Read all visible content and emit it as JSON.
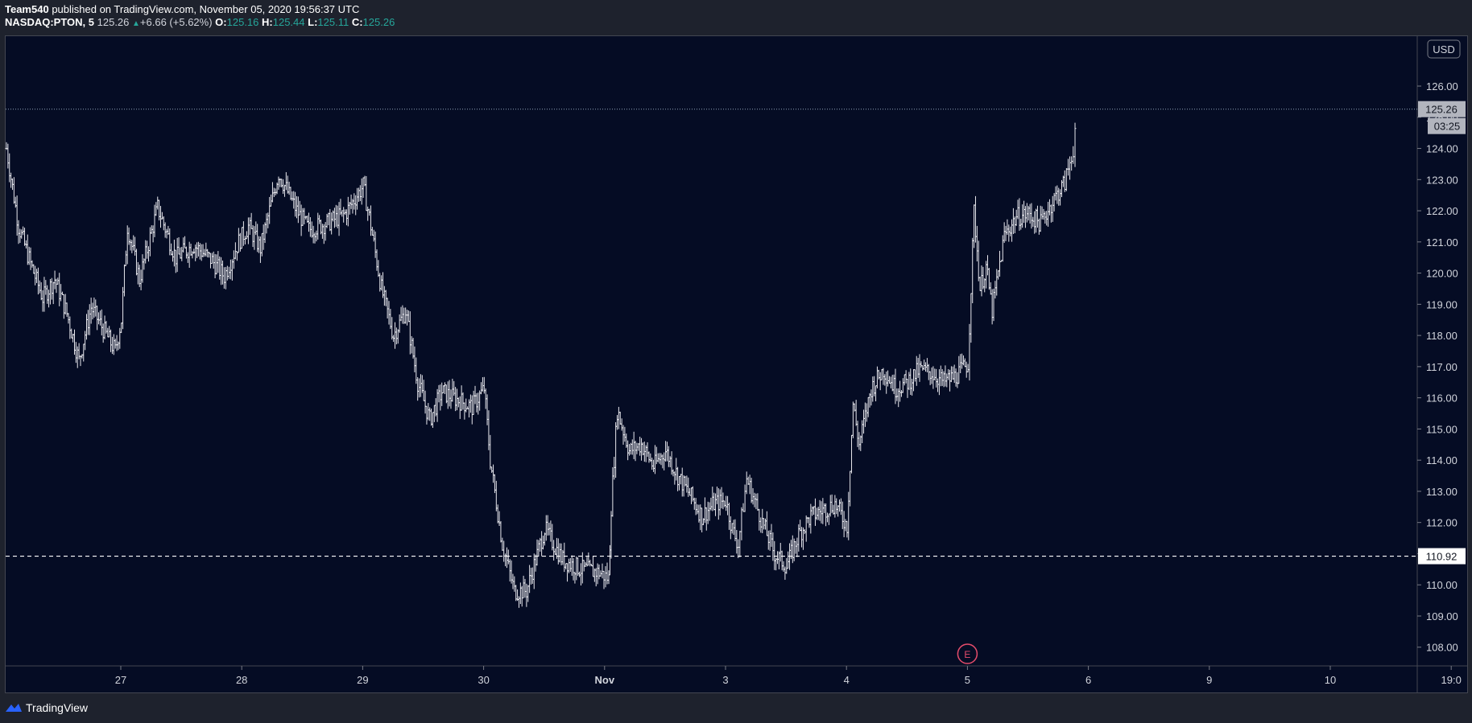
{
  "header": {
    "author": "Team540",
    "published_text": "published on TradingView.com, November 05, 2020 19:56:37 UTC",
    "symbol": "NASDAQ:PTON, 5",
    "last": "125.26",
    "change": "+6.66 (+5.62%)",
    "o_label": "O:",
    "o_value": "125.16",
    "h_label": "H:",
    "h_value": "125.44",
    "l_label": "L:",
    "l_value": "125.11",
    "c_label": "C:",
    "c_value": "125.26"
  },
  "currency_button": "USD",
  "footer": {
    "brand": "TradingView"
  },
  "colors": {
    "background": "#050c24",
    "bars": "#e8e8ee",
    "accent": "#26a69a",
    "earnings": "#e54c6b"
  },
  "chart_data": {
    "type": "ohlc",
    "symbol": "NASDAQ:PTON",
    "interval": "5",
    "ylim": [
      107.4,
      127.6
    ],
    "y_ticks": [
      "108.00",
      "109.00",
      "110.00",
      "111.00",
      "112.00",
      "113.00",
      "114.00",
      "115.00",
      "116.00",
      "117.00",
      "118.00",
      "119.00",
      "120.00",
      "121.00",
      "122.00",
      "123.00",
      "124.00",
      "125.00",
      "126.00"
    ],
    "x_ticks": [
      "27",
      "28",
      "29",
      "30",
      "Nov",
      "3",
      "4",
      "5",
      "6",
      "9",
      "10",
      "19:0"
    ],
    "last_price": {
      "value": 125.26,
      "label": "125.26",
      "countdown": "03:25"
    },
    "horizontal_line": {
      "value": 110.92,
      "label": "110.92"
    },
    "events": [
      {
        "x": "5",
        "label": "E"
      }
    ],
    "series": [
      {
        "x": 0.0,
        "y": 124.0
      },
      {
        "x": 0.1,
        "y": 121.5
      },
      {
        "x": 0.2,
        "y": 120.3
      },
      {
        "x": 0.3,
        "y": 119.2
      },
      {
        "x": 0.4,
        "y": 119.8
      },
      {
        "x": 0.5,
        "y": 118.7
      },
      {
        "x": 0.6,
        "y": 117.2
      },
      {
        "x": 0.7,
        "y": 118.9
      },
      {
        "x": 0.8,
        "y": 118.2
      },
      {
        "x": 0.9,
        "y": 117.5
      },
      {
        "x": 0.95,
        "y": 118.5
      },
      {
        "x": 1.0,
        "y": 121.5
      },
      {
        "x": 1.1,
        "y": 119.8
      },
      {
        "x": 1.25,
        "y": 122.1
      },
      {
        "x": 1.4,
        "y": 120.5
      },
      {
        "x": 1.55,
        "y": 120.9
      },
      {
        "x": 1.7,
        "y": 120.4
      },
      {
        "x": 1.8,
        "y": 119.9
      },
      {
        "x": 1.92,
        "y": 121.0
      },
      {
        "x": 2.0,
        "y": 121.5
      },
      {
        "x": 2.1,
        "y": 120.8
      },
      {
        "x": 2.25,
        "y": 123.2
      },
      {
        "x": 2.4,
        "y": 122.0
      },
      {
        "x": 2.5,
        "y": 121.4
      },
      {
        "x": 2.65,
        "y": 121.6
      },
      {
        "x": 2.8,
        "y": 121.9
      },
      {
        "x": 2.95,
        "y": 122.8
      },
      {
        "x": 3.0,
        "y": 121.8
      },
      {
        "x": 3.1,
        "y": 119.5
      },
      {
        "x": 3.2,
        "y": 118.0
      },
      {
        "x": 3.3,
        "y": 118.8
      },
      {
        "x": 3.4,
        "y": 116.5
      },
      {
        "x": 3.5,
        "y": 115.3
      },
      {
        "x": 3.6,
        "y": 116.2
      },
      {
        "x": 3.7,
        "y": 116.0
      },
      {
        "x": 3.85,
        "y": 115.7
      },
      {
        "x": 3.95,
        "y": 116.3
      },
      {
        "x": 4.0,
        "y": 114.0
      },
      {
        "x": 4.1,
        "y": 111.3
      },
      {
        "x": 4.2,
        "y": 109.8
      },
      {
        "x": 4.3,
        "y": 109.8
      },
      {
        "x": 4.45,
        "y": 111.8
      },
      {
        "x": 4.6,
        "y": 110.8
      },
      {
        "x": 4.75,
        "y": 110.5
      },
      {
        "x": 4.9,
        "y": 110.4
      },
      {
        "x": 4.98,
        "y": 110.2
      },
      {
        "x": 5.0,
        "y": 112.5
      },
      {
        "x": 5.05,
        "y": 115.6
      },
      {
        "x": 5.15,
        "y": 114.3
      },
      {
        "x": 5.25,
        "y": 114.5
      },
      {
        "x": 5.35,
        "y": 113.8
      },
      {
        "x": 5.45,
        "y": 114.3
      },
      {
        "x": 5.55,
        "y": 113.5
      },
      {
        "x": 5.65,
        "y": 112.9
      },
      {
        "x": 5.75,
        "y": 112.2
      },
      {
        "x": 5.85,
        "y": 112.6
      },
      {
        "x": 5.95,
        "y": 112.7
      },
      {
        "x": 6.0,
        "y": 111.8
      },
      {
        "x": 6.05,
        "y": 111.3
      },
      {
        "x": 6.12,
        "y": 113.4
      },
      {
        "x": 6.25,
        "y": 112.0
      },
      {
        "x": 6.35,
        "y": 111.0
      },
      {
        "x": 6.45,
        "y": 110.6
      },
      {
        "x": 6.55,
        "y": 111.6
      },
      {
        "x": 6.65,
        "y": 112.2
      },
      {
        "x": 6.75,
        "y": 112.4
      },
      {
        "x": 6.85,
        "y": 112.6
      },
      {
        "x": 6.95,
        "y": 111.9
      },
      {
        "x": 7.0,
        "y": 115.8
      },
      {
        "x": 7.05,
        "y": 114.5
      },
      {
        "x": 7.15,
        "y": 116.3
      },
      {
        "x": 7.25,
        "y": 116.9
      },
      {
        "x": 7.35,
        "y": 116.3
      },
      {
        "x": 7.45,
        "y": 116.5
      },
      {
        "x": 7.55,
        "y": 116.9
      },
      {
        "x": 7.65,
        "y": 116.8
      },
      {
        "x": 7.75,
        "y": 116.5
      },
      {
        "x": 7.85,
        "y": 116.7
      },
      {
        "x": 7.95,
        "y": 117.1
      },
      {
        "x": 8.0,
        "y": 122.0
      },
      {
        "x": 8.05,
        "y": 119.5
      },
      {
        "x": 8.1,
        "y": 120.2
      },
      {
        "x": 8.15,
        "y": 118.8
      },
      {
        "x": 8.25,
        "y": 121.2
      },
      {
        "x": 8.35,
        "y": 121.8
      },
      {
        "x": 8.45,
        "y": 121.9
      },
      {
        "x": 8.55,
        "y": 121.6
      },
      {
        "x": 8.65,
        "y": 122.3
      },
      {
        "x": 8.75,
        "y": 122.9
      },
      {
        "x": 8.82,
        "y": 124.0
      },
      {
        "x": 8.85,
        "y": 125.26
      }
    ]
  }
}
